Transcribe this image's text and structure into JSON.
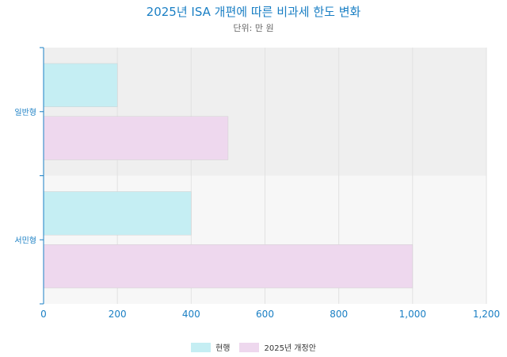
{
  "chart_data": {
    "type": "bar",
    "orientation": "horizontal",
    "title": "2025년 ISA 개편에 따른 비과세 한도 변화",
    "subtitle": "단위: 만 원",
    "categories": [
      "일반형",
      "서민형"
    ],
    "series": [
      {
        "name": "현행",
        "values": [
          200,
          400
        ],
        "color": "#c5eef3"
      },
      {
        "name": "2025년 개정안",
        "values": [
          500,
          1000
        ],
        "color": "#eed8ee"
      }
    ],
    "xlim": [
      0,
      1200
    ],
    "x_ticks": [
      "0",
      "200",
      "400",
      "600",
      "800",
      "1,000",
      "1,200"
    ],
    "grid": true,
    "legend_position": "bottom",
    "axis_color": "#1a7fc4"
  }
}
